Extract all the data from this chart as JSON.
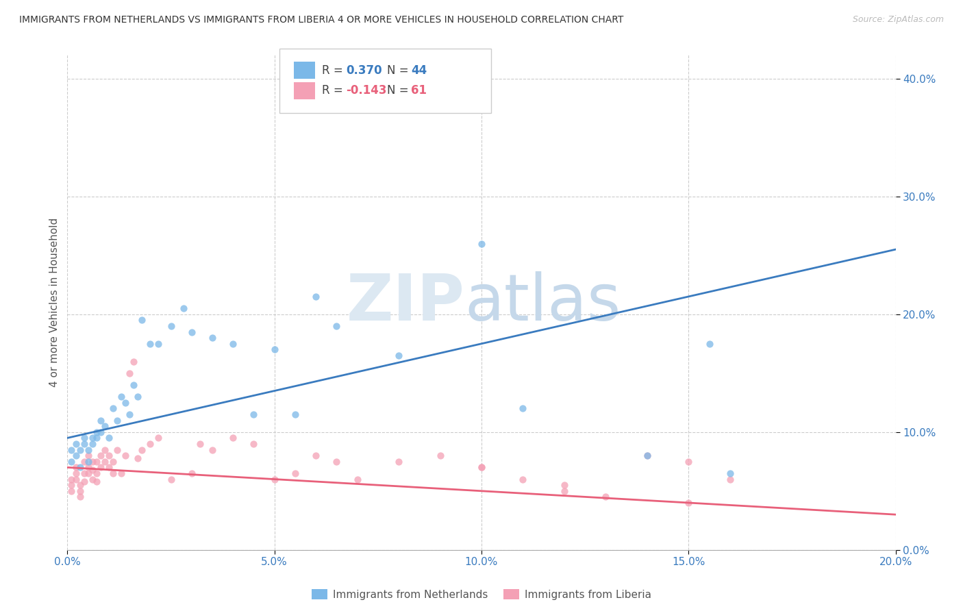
{
  "title": "IMMIGRANTS FROM NETHERLANDS VS IMMIGRANTS FROM LIBERIA 4 OR MORE VEHICLES IN HOUSEHOLD CORRELATION CHART",
  "source": "Source: ZipAtlas.com",
  "ylabel": "4 or more Vehicles in Household",
  "legend_nl_R": "0.370",
  "legend_nl_N": "44",
  "legend_lib_R": "-0.143",
  "legend_lib_N": "61",
  "netherlands_color": "#7bb8e8",
  "liberia_color": "#f4a0b5",
  "netherlands_line_color": "#3a7bbf",
  "liberia_line_color": "#e8607a",
  "background_color": "#ffffff",
  "xlim": [
    0.0,
    0.2
  ],
  "ylim": [
    0.0,
    0.42
  ],
  "nl_x": [
    0.001,
    0.001,
    0.002,
    0.002,
    0.003,
    0.003,
    0.004,
    0.004,
    0.005,
    0.005,
    0.006,
    0.006,
    0.007,
    0.007,
    0.008,
    0.008,
    0.009,
    0.01,
    0.011,
    0.012,
    0.013,
    0.014,
    0.015,
    0.016,
    0.017,
    0.018,
    0.02,
    0.022,
    0.025,
    0.028,
    0.03,
    0.035,
    0.04,
    0.045,
    0.05,
    0.055,
    0.06,
    0.065,
    0.08,
    0.1,
    0.11,
    0.14,
    0.155,
    0.16
  ],
  "nl_y": [
    0.075,
    0.085,
    0.08,
    0.09,
    0.07,
    0.085,
    0.09,
    0.095,
    0.075,
    0.085,
    0.09,
    0.095,
    0.095,
    0.1,
    0.1,
    0.11,
    0.105,
    0.095,
    0.12,
    0.11,
    0.13,
    0.125,
    0.115,
    0.14,
    0.13,
    0.195,
    0.175,
    0.175,
    0.19,
    0.205,
    0.185,
    0.18,
    0.175,
    0.115,
    0.17,
    0.115,
    0.215,
    0.19,
    0.165,
    0.26,
    0.12,
    0.08,
    0.175,
    0.065
  ],
  "lib_x": [
    0.001,
    0.001,
    0.001,
    0.002,
    0.002,
    0.002,
    0.003,
    0.003,
    0.003,
    0.004,
    0.004,
    0.004,
    0.005,
    0.005,
    0.005,
    0.006,
    0.006,
    0.006,
    0.007,
    0.007,
    0.007,
    0.008,
    0.008,
    0.009,
    0.009,
    0.01,
    0.01,
    0.011,
    0.011,
    0.012,
    0.013,
    0.014,
    0.015,
    0.016,
    0.017,
    0.018,
    0.02,
    0.022,
    0.025,
    0.03,
    0.032,
    0.035,
    0.04,
    0.045,
    0.05,
    0.055,
    0.06,
    0.065,
    0.07,
    0.08,
    0.09,
    0.1,
    0.11,
    0.12,
    0.13,
    0.14,
    0.15,
    0.16,
    0.1,
    0.12,
    0.15
  ],
  "lib_y": [
    0.06,
    0.055,
    0.05,
    0.07,
    0.065,
    0.06,
    0.055,
    0.05,
    0.045,
    0.075,
    0.065,
    0.058,
    0.08,
    0.07,
    0.065,
    0.075,
    0.068,
    0.06,
    0.075,
    0.065,
    0.058,
    0.08,
    0.07,
    0.085,
    0.075,
    0.08,
    0.07,
    0.075,
    0.065,
    0.085,
    0.065,
    0.08,
    0.15,
    0.16,
    0.078,
    0.085,
    0.09,
    0.095,
    0.06,
    0.065,
    0.09,
    0.085,
    0.095,
    0.09,
    0.06,
    0.065,
    0.08,
    0.075,
    0.06,
    0.075,
    0.08,
    0.07,
    0.06,
    0.05,
    0.045,
    0.08,
    0.075,
    0.06,
    0.07,
    0.055,
    0.04
  ],
  "nl_trend_x0": 0.0,
  "nl_trend_y0": 0.095,
  "nl_trend_x1": 0.2,
  "nl_trend_y1": 0.255,
  "lib_trend_x0": 0.0,
  "lib_trend_y0": 0.07,
  "lib_trend_x1": 0.2,
  "lib_trend_y1": 0.03
}
